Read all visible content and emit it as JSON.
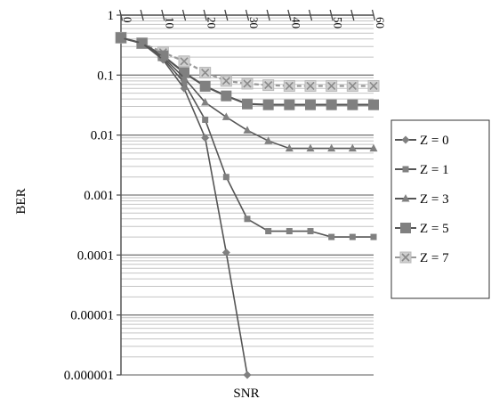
{
  "chart_data": {
    "type": "line",
    "title": "",
    "xlabel": "SNR",
    "ylabel": "BER",
    "x_scale": "linear",
    "y_scale": "log",
    "xlim": [
      0,
      60
    ],
    "ylim": [
      1e-06,
      1
    ],
    "x_ticks": [
      "0",
      "10",
      "20",
      "30",
      "40",
      "50",
      "60"
    ],
    "y_ticks": [
      "1",
      "0.1",
      "0.01",
      "0.001",
      "0.0001",
      "0.00001",
      "0.000001"
    ],
    "grid": true,
    "legend_position": "right",
    "series": [
      {
        "name": "Z = 0",
        "marker": "diamond",
        "color": "#808080",
        "x": [
          0,
          5,
          10,
          15,
          20,
          25,
          30
        ],
        "y": [
          0.42,
          0.34,
          0.18,
          0.06,
          0.009,
          0.00011,
          1e-06
        ]
      },
      {
        "name": "Z = 1",
        "marker": "square",
        "color": "#808080",
        "x": [
          0,
          5,
          10,
          15,
          20,
          25,
          30,
          35,
          40,
          45,
          50,
          55,
          60
        ],
        "y": [
          0.42,
          0.34,
          0.19,
          0.075,
          0.018,
          0.002,
          0.0004,
          0.00025,
          0.00025,
          0.00025,
          0.0002,
          0.0002,
          0.0002
        ]
      },
      {
        "name": "Z = 3",
        "marker": "triangle",
        "color": "#808080",
        "x": [
          0,
          5,
          10,
          15,
          20,
          25,
          30,
          35,
          40,
          45,
          50,
          55,
          60
        ],
        "y": [
          0.42,
          0.34,
          0.2,
          0.09,
          0.035,
          0.02,
          0.012,
          0.008,
          0.006,
          0.006,
          0.006,
          0.006,
          0.006
        ]
      },
      {
        "name": "Z = 5",
        "marker": "square-large",
        "color": "#808080",
        "x": [
          0,
          5,
          10,
          15,
          20,
          25,
          30,
          35,
          40,
          45,
          50,
          55,
          60
        ],
        "y": [
          0.42,
          0.34,
          0.21,
          0.11,
          0.065,
          0.045,
          0.033,
          0.032,
          0.032,
          0.032,
          0.032,
          0.032,
          0.032
        ]
      },
      {
        "name": "Z = 7",
        "marker": "x-box",
        "color": "#b8b8b8",
        "x": [
          0,
          5,
          10,
          15,
          20,
          25,
          30,
          35,
          40,
          45,
          50,
          55,
          60
        ],
        "y": [
          0.42,
          0.34,
          0.24,
          0.17,
          0.11,
          0.08,
          0.072,
          0.068,
          0.066,
          0.066,
          0.066,
          0.066,
          0.066
        ]
      }
    ]
  }
}
